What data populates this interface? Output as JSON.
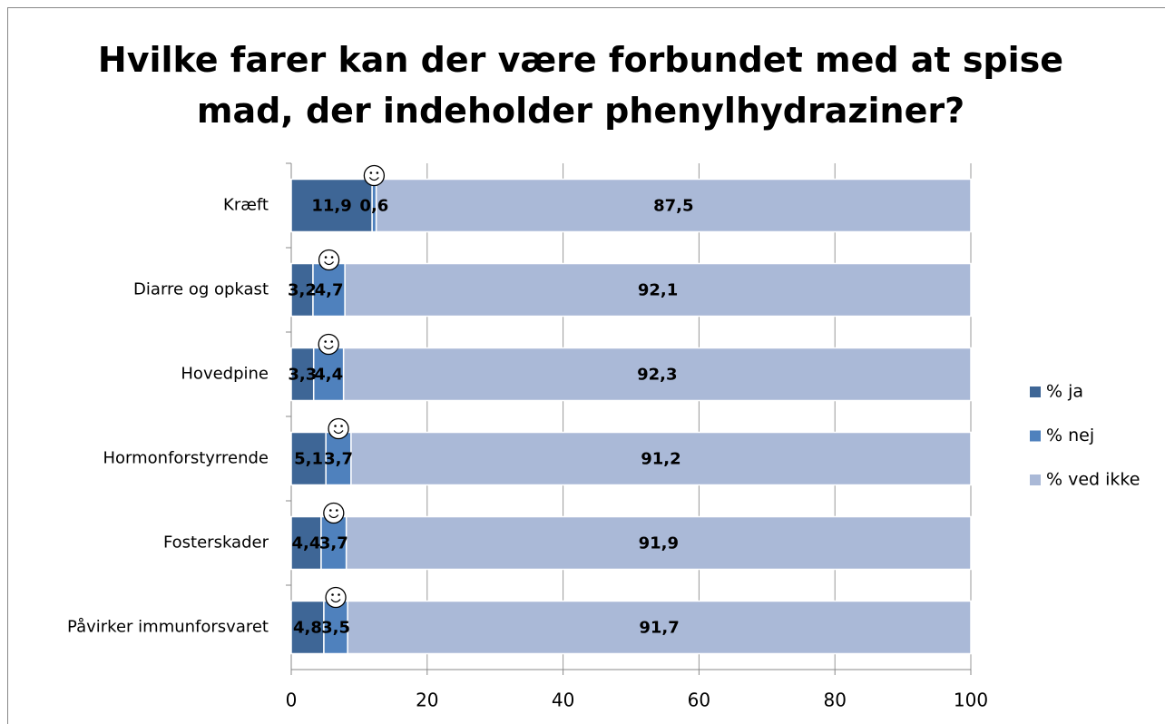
{
  "chart_data": {
    "type": "stacked_bar_horizontal",
    "title": "Hvilke farer kan der være forbundet med at spise mad, der indeholder phenylhydraziner?",
    "categories": [
      "Kræft",
      "Diarre og opkast",
      "Hovedpine",
      "Hormonforstyrrende",
      "Fosterskader",
      "Påvirker immunforsvaret"
    ],
    "series": [
      {
        "name": "% ja",
        "color": "#3e6696",
        "values": [
          11.9,
          3.2,
          3.3,
          5.1,
          4.4,
          4.8
        ],
        "value_labels": [
          "11,9",
          "3,2",
          "3,3",
          "5,1",
          "4,4",
          "4,8"
        ]
      },
      {
        "name": "% nej",
        "color": "#4f81bd",
        "values": [
          0.6,
          4.7,
          4.4,
          3.7,
          3.7,
          3.5
        ],
        "value_labels": [
          "0,6",
          "4,7",
          "4,4",
          "3,7",
          "3,7",
          "3,5"
        ]
      },
      {
        "name": "% ved ikke",
        "color": "#aab9d7",
        "values": [
          87.5,
          92.1,
          92.3,
          91.2,
          91.9,
          91.7
        ],
        "value_labels": [
          "87,5",
          "92,1",
          "92,3",
          "91,2",
          "91,9",
          "91,7"
        ]
      }
    ],
    "xlim": [
      0,
      100
    ],
    "xticks": [
      0,
      20,
      40,
      60,
      80,
      100
    ],
    "grid": true,
    "legend": "right"
  }
}
